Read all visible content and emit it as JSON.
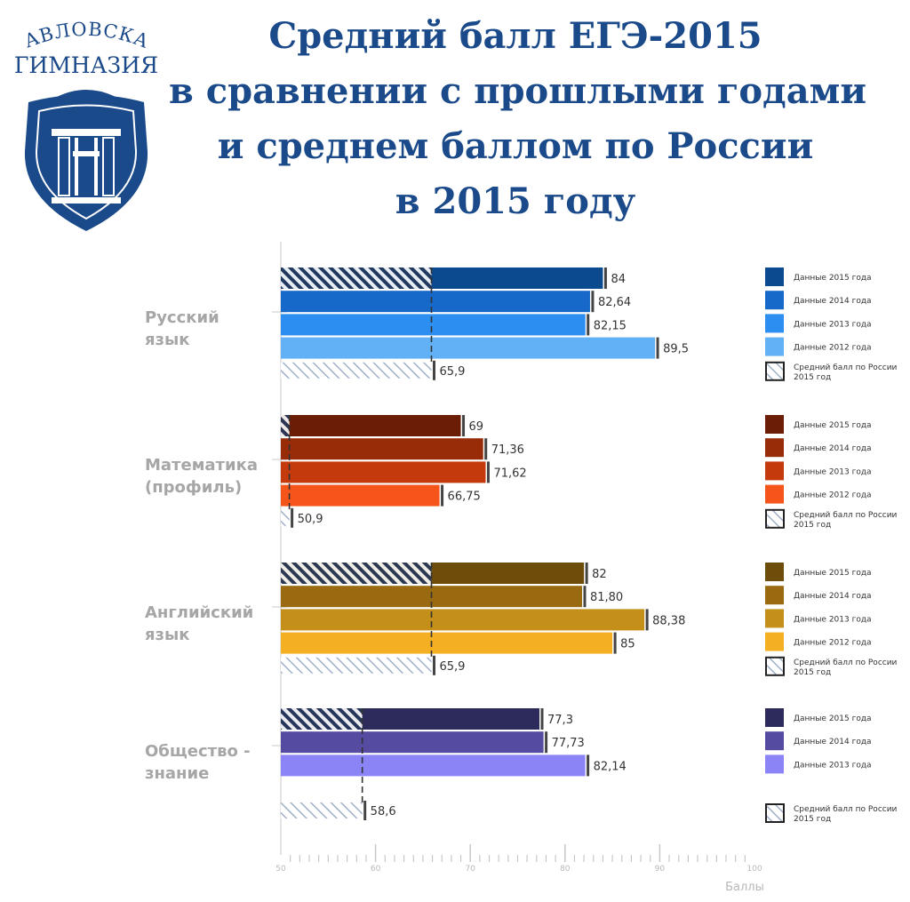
{
  "logo": {
    "line1": "ПАВЛОВСКАЯ",
    "line2": "ГИМНАЗИЯ"
  },
  "title_lines": [
    "Средний балл ЕГЭ-2015",
    "в сравнении с прошлыми годами",
    "и среднем баллом по России",
    "в 2015 году"
  ],
  "colors": {
    "title": "#1b4a8a",
    "logo": "#1b4a8a"
  },
  "chart_data": {
    "type": "bar",
    "orientation": "horizontal",
    "xlabel": "Баллы",
    "xlim": [
      50,
      100
    ],
    "xticks": [
      50,
      60,
      70,
      80,
      90,
      100
    ],
    "grid": false,
    "legend": "right",
    "groups": [
      {
        "category": "Русский язык",
        "label_lines": [
          "Русский",
          "язык"
        ],
        "reference": {
          "name": "Средний балл по России 2015 год",
          "value": 65.9,
          "label": "65,9"
        },
        "series": [
          {
            "name": "Данные 2015 года",
            "value": 84,
            "label": "84",
            "color": "#0b4a8e"
          },
          {
            "name": "Данные 2014 года",
            "value": 82.64,
            "label": "82,64",
            "color": "#1769c9"
          },
          {
            "name": "Данные 2013 года",
            "value": 82.15,
            "label": "82,15",
            "color": "#2b8ef0"
          },
          {
            "name": "Данные 2012 года",
            "value": 89.5,
            "label": "89,5",
            "color": "#62b1f6"
          }
        ]
      },
      {
        "category": "Математика (профиль)",
        "label_lines": [
          "Математика",
          "(профиль)"
        ],
        "reference": {
          "name": "Средний балл по России 2015 год",
          "value": 50.9,
          "label": "50,9"
        },
        "series": [
          {
            "name": "Данные 2015 года",
            "value": 69,
            "label": "69",
            "color": "#6b1d06"
          },
          {
            "name": "Данные 2014 года",
            "value": 71.36,
            "label": "71,36",
            "color": "#992c08"
          },
          {
            "name": "Данные 2013 года",
            "value": 71.62,
            "label": "71,62",
            "color": "#c43a0c"
          },
          {
            "name": "Данные 2012 года",
            "value": 66.75,
            "label": "66,75",
            "color": "#f5541a"
          }
        ]
      },
      {
        "category": "Английский язык",
        "label_lines": [
          "Английский",
          "язык"
        ],
        "reference": {
          "name": "Средний балл по России 2015 год",
          "value": 65.9,
          "label": "65,9"
        },
        "series": [
          {
            "name": "Данные 2015 года",
            "value": 82,
            "label": "82",
            "color": "#6e4d0a"
          },
          {
            "name": "Данные 2014 года",
            "value": 81.8,
            "label": "81,80",
            "color": "#9a6a10"
          },
          {
            "name": "Данные 2013 года",
            "value": 88.38,
            "label": "88,38",
            "color": "#c4901a"
          },
          {
            "name": "Данные 2012 года",
            "value": 85,
            "label": "85",
            "color": "#f4b022"
          }
        ]
      },
      {
        "category": "Общество - знание",
        "label_lines": [
          "Общество -",
          "знание"
        ],
        "reference": {
          "name": "Средний балл по России 2015 год",
          "value": 58.6,
          "label": "58,6"
        },
        "series": [
          {
            "name": "Данные 2015 года",
            "value": 77.3,
            "label": "77,3",
            "color": "#2d2a5c"
          },
          {
            "name": "Данные 2014 года",
            "value": 77.73,
            "label": "77,73",
            "color": "#554ba0"
          },
          {
            "name": "Данные 2013 года",
            "value": 82.14,
            "label": "82,14",
            "color": "#8a84f7"
          }
        ]
      }
    ]
  }
}
